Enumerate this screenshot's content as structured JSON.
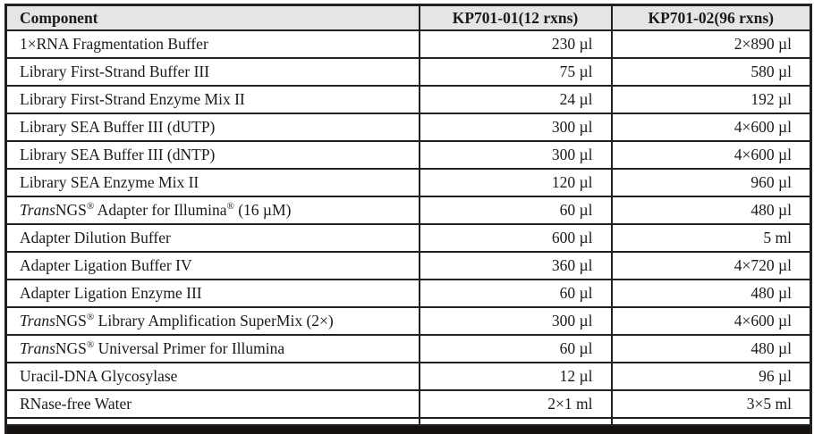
{
  "colors": {
    "border": "#231f20",
    "text": "#1a1a1a",
    "header_bg": "#e5e5e5",
    "row_bg": "#ffffff"
  },
  "table": {
    "columns": [
      {
        "label": "Component"
      },
      {
        "label": "KP701-01(12 rxns)"
      },
      {
        "label": "KP701-02(96 rxns)"
      }
    ],
    "rows": [
      {
        "component": [
          {
            "t": "1×RNA Fragmentation Buffer"
          }
        ],
        "v12": "230 µl",
        "v96": "2×890 µl"
      },
      {
        "component": [
          {
            "t": "Library First-Strand Buffer III"
          }
        ],
        "v12": "75 µl",
        "v96": "580 µl"
      },
      {
        "component": [
          {
            "t": "Library First-Strand Enzyme Mix II"
          }
        ],
        "v12": "24 µl",
        "v96": "192 µl"
      },
      {
        "component": [
          {
            "t": "Library SEA Buffer III (dUTP)"
          }
        ],
        "v12": "300 µl",
        "v96": "4×600 µl"
      },
      {
        "component": [
          {
            "t": "Library SEA Buffer III (dNTP)"
          }
        ],
        "v12": "300 µl",
        "v96": "4×600 µl"
      },
      {
        "component": [
          {
            "t": "Library SEA Enzyme Mix II"
          }
        ],
        "v12": "120 µl",
        "v96": "960 µl"
      },
      {
        "component": [
          {
            "t": "Trans",
            "style": "italic"
          },
          {
            "t": "NGS"
          },
          {
            "t": "®",
            "style": "sup"
          },
          {
            "t": " Adapter for Illumina"
          },
          {
            "t": "®",
            "style": "sup"
          },
          {
            "t": " (16 µM)"
          }
        ],
        "v12": "60 µl",
        "v96": "480 µl"
      },
      {
        "component": [
          {
            "t": "Adapter Dilution Buffer"
          }
        ],
        "v12": "600 µl",
        "v96": "5 ml"
      },
      {
        "component": [
          {
            "t": "Adapter Ligation Buffer IV"
          }
        ],
        "v12": "360 µl",
        "v96": "4×720 µl"
      },
      {
        "component": [
          {
            "t": "Adapter Ligation Enzyme III"
          }
        ],
        "v12": "60 µl",
        "v96": "480 µl"
      },
      {
        "component": [
          {
            "t": "Trans",
            "style": "italic"
          },
          {
            "t": "NGS"
          },
          {
            "t": "®",
            "style": "sup"
          },
          {
            "t": " Library Amplification SuperMix (2×)"
          }
        ],
        "v12": "300 µl",
        "v96": "4×600 µl"
      },
      {
        "component": [
          {
            "t": "Trans",
            "style": "italic"
          },
          {
            "t": "NGS"
          },
          {
            "t": "®",
            "style": "sup"
          },
          {
            "t": " Universal Primer for Illumina"
          }
        ],
        "v12": "60 µl",
        "v96": "480 µl"
      },
      {
        "component": [
          {
            "t": "Uracil-DNA Glycosylase"
          }
        ],
        "v12": "12 µl",
        "v96": "96 µl"
      },
      {
        "component": [
          {
            "t": "RNase-free Water"
          }
        ],
        "v12": "2×1 ml",
        "v96": "3×5 ml"
      }
    ]
  }
}
